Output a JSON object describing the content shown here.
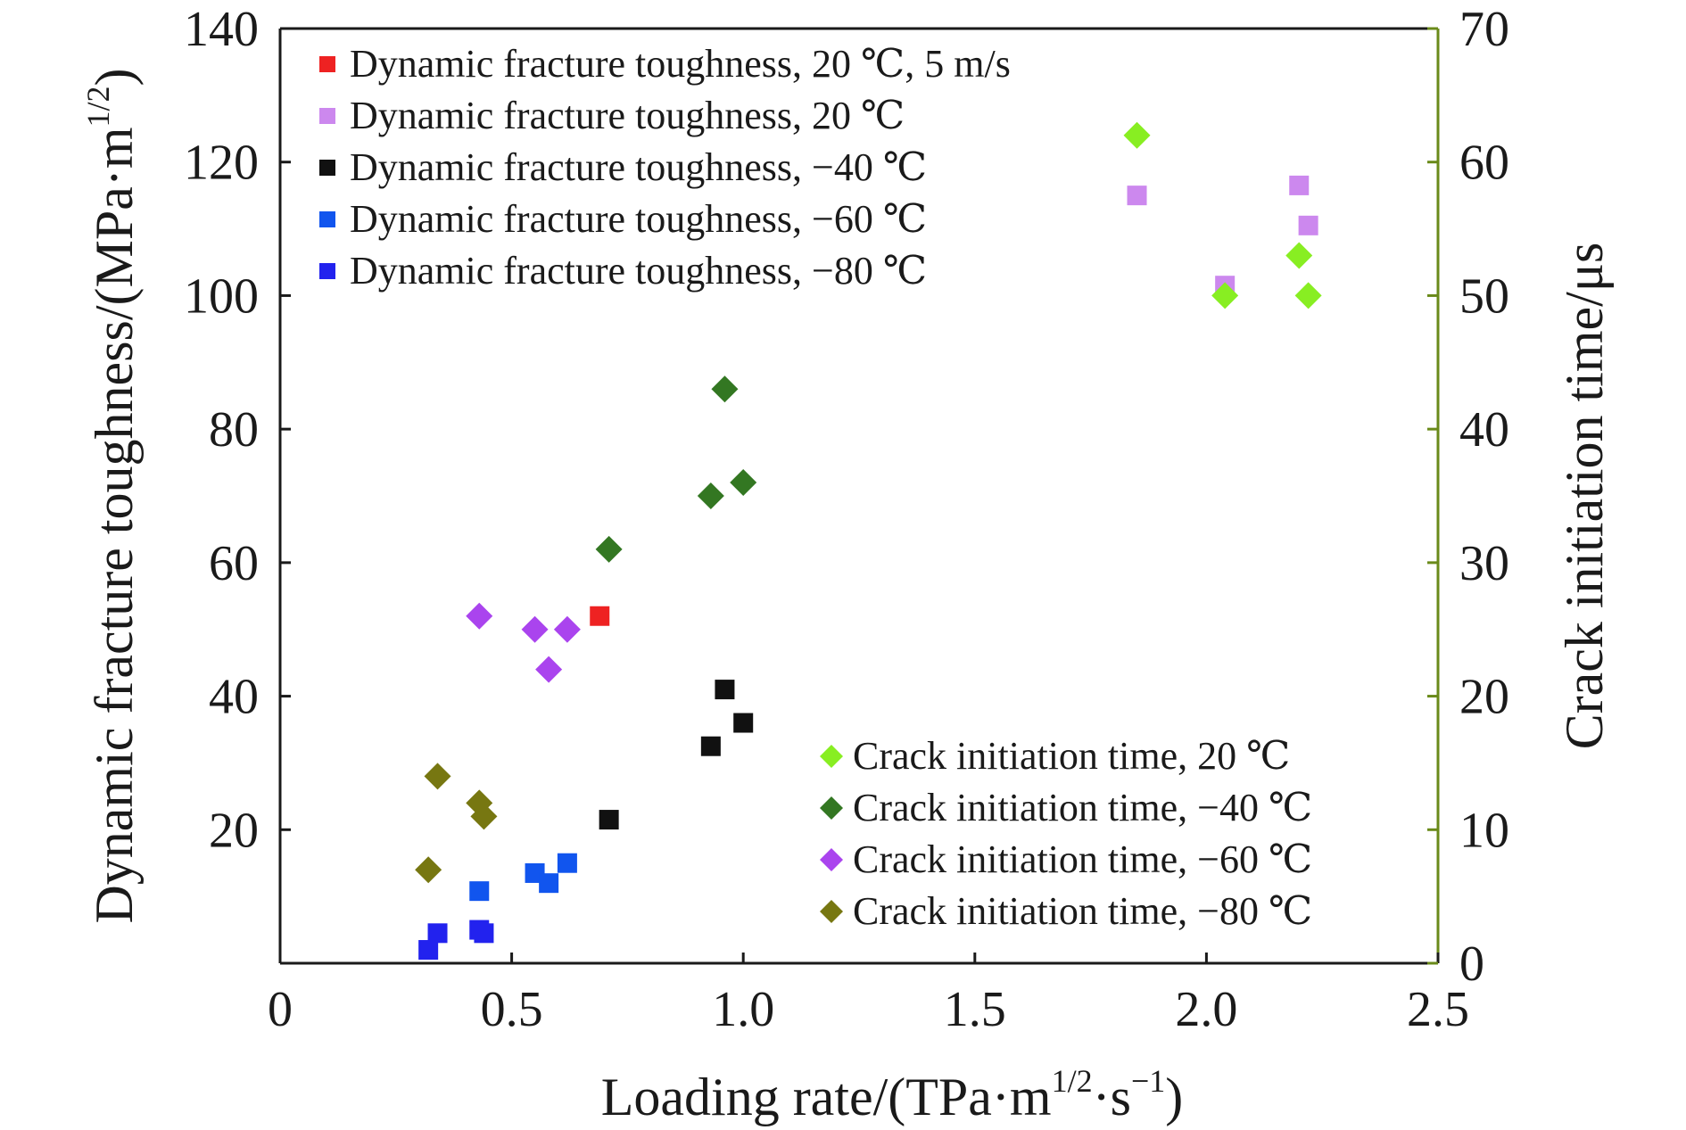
{
  "chart_data": {
    "type": "scatter",
    "xlabel": "Loading rate/(TPa·m",
    "xlabel_sup1": "1/2",
    "xlabel_mid": "·s",
    "xlabel_sup2": "−1",
    "xlabel_end": ")",
    "ylabel_left": "Dynamic fracture toughness/(MPa·m",
    "ylabel_left_sup": "1/2",
    "ylabel_left_end": ")",
    "ylabel_right": "Crack initiation time/μs",
    "xlim": [
      0,
      2.5
    ],
    "ylim_left": [
      0,
      140
    ],
    "ylim_right": [
      0,
      70
    ],
    "xticks": [
      "0",
      "0.5",
      "1.0",
      "1.5",
      "2.0",
      "2.5"
    ],
    "xtick_values": [
      0,
      0.5,
      1.0,
      1.5,
      2.0,
      2.5
    ],
    "yticks_left": [
      "20",
      "40",
      "60",
      "80",
      "100",
      "120",
      "140"
    ],
    "ytick_left_values": [
      20,
      40,
      60,
      80,
      100,
      120,
      140
    ],
    "yticks_right": [
      "0",
      "10",
      "20",
      "30",
      "40",
      "50",
      "60",
      "70"
    ],
    "ytick_right_values": [
      0,
      10,
      20,
      30,
      40,
      50,
      60,
      70
    ],
    "grid": false,
    "legend_toughness_position": "top-left",
    "legend_time_position": "bottom-right",
    "series": [
      {
        "name": "Dynamic fracture toughness, 20 ℃, 5 m/s",
        "marker": "square",
        "axis": "left",
        "color": "#ee2222",
        "points": [
          [
            0.69,
            52
          ]
        ]
      },
      {
        "name": "Dynamic fracture toughness, 20 ℃",
        "marker": "square",
        "axis": "left",
        "color": "#cc88ee",
        "points": [
          [
            1.85,
            115
          ],
          [
            2.04,
            101.5
          ],
          [
            2.2,
            116.5
          ],
          [
            2.22,
            110.5
          ]
        ]
      },
      {
        "name": "Dynamic fracture toughness, −40 ℃",
        "marker": "square",
        "axis": "left",
        "color": "#111111",
        "points": [
          [
            0.71,
            21.5
          ],
          [
            0.93,
            32.5
          ],
          [
            0.96,
            41
          ],
          [
            1.0,
            36
          ]
        ]
      },
      {
        "name": "Dynamic fracture toughness, −60 ℃",
        "marker": "square",
        "axis": "left",
        "color": "#1155ee",
        "points": [
          [
            0.43,
            10.8
          ],
          [
            0.55,
            13.5
          ],
          [
            0.58,
            12
          ],
          [
            0.62,
            15
          ]
        ]
      },
      {
        "name": "Dynamic fracture toughness, −80 ℃",
        "marker": "square",
        "axis": "left",
        "color": "#2222ee",
        "points": [
          [
            0.32,
            2
          ],
          [
            0.34,
            4.5
          ],
          [
            0.43,
            5
          ],
          [
            0.44,
            4.5
          ]
        ]
      },
      {
        "name": "Crack initiation time, 20 ℃",
        "marker": "diamond",
        "axis": "right",
        "color": "#88ee22",
        "points": [
          [
            1.85,
            62
          ],
          [
            2.04,
            50
          ],
          [
            2.2,
            53
          ],
          [
            2.22,
            50
          ]
        ]
      },
      {
        "name": "Crack initiation time, −40 ℃",
        "marker": "diamond",
        "axis": "right",
        "color": "#337722",
        "points": [
          [
            0.71,
            31
          ],
          [
            0.93,
            35
          ],
          [
            0.96,
            43
          ],
          [
            1.0,
            36
          ]
        ]
      },
      {
        "name": "Crack initiation time, −60 ℃",
        "marker": "diamond",
        "axis": "right",
        "color": "#aa44ee",
        "points": [
          [
            0.43,
            26
          ],
          [
            0.55,
            25
          ],
          [
            0.58,
            22
          ],
          [
            0.62,
            25
          ]
        ]
      },
      {
        "name": "Crack initiation time, −80 ℃",
        "marker": "diamond",
        "axis": "right",
        "color": "#777711",
        "points": [
          [
            0.32,
            7
          ],
          [
            0.34,
            14
          ],
          [
            0.43,
            12
          ],
          [
            0.44,
            11
          ]
        ]
      }
    ]
  }
}
